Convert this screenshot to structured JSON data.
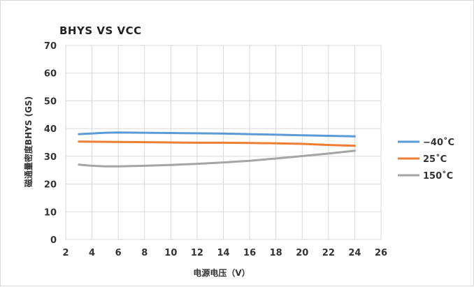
{
  "chart_data": {
    "type": "line",
    "title": "BHYS  VS  VCC",
    "xlabel": "电源电压（V）",
    "ylabel": "磁通量密度BHYS (GS)",
    "xlim": [
      2,
      26
    ],
    "ylim": [
      0,
      70
    ],
    "xticks": [
      2,
      4,
      6,
      8,
      10,
      12,
      14,
      16,
      18,
      20,
      22,
      24,
      26
    ],
    "yticks": [
      0,
      10,
      20,
      30,
      40,
      50,
      60,
      70
    ],
    "grid": true,
    "legend_position": "right",
    "series": [
      {
        "name": "−40˚C",
        "color": "#5b9bd5",
        "x": [
          3,
          5,
          6,
          8,
          10,
          12,
          14,
          16,
          18,
          20,
          22,
          24
        ],
        "y": [
          38.0,
          38.5,
          38.6,
          38.5,
          38.4,
          38.3,
          38.2,
          38.0,
          37.8,
          37.6,
          37.4,
          37.2
        ]
      },
      {
        "name": "25˚C",
        "color": "#ed7d31",
        "x": [
          3,
          6,
          8,
          10,
          12,
          14,
          16,
          18,
          20,
          22,
          24
        ],
        "y": [
          35.3,
          35.2,
          35.1,
          35.0,
          34.9,
          34.9,
          34.8,
          34.7,
          34.5,
          34.1,
          33.8
        ]
      },
      {
        "name": "150˚C",
        "color": "#a5a5a5",
        "x": [
          3,
          4,
          5,
          6,
          8,
          10,
          12,
          14,
          16,
          18,
          20,
          22,
          24
        ],
        "y": [
          27.0,
          26.6,
          26.4,
          26.4,
          26.6,
          26.9,
          27.3,
          27.8,
          28.4,
          29.2,
          30.1,
          31.0,
          32.0
        ]
      }
    ]
  }
}
